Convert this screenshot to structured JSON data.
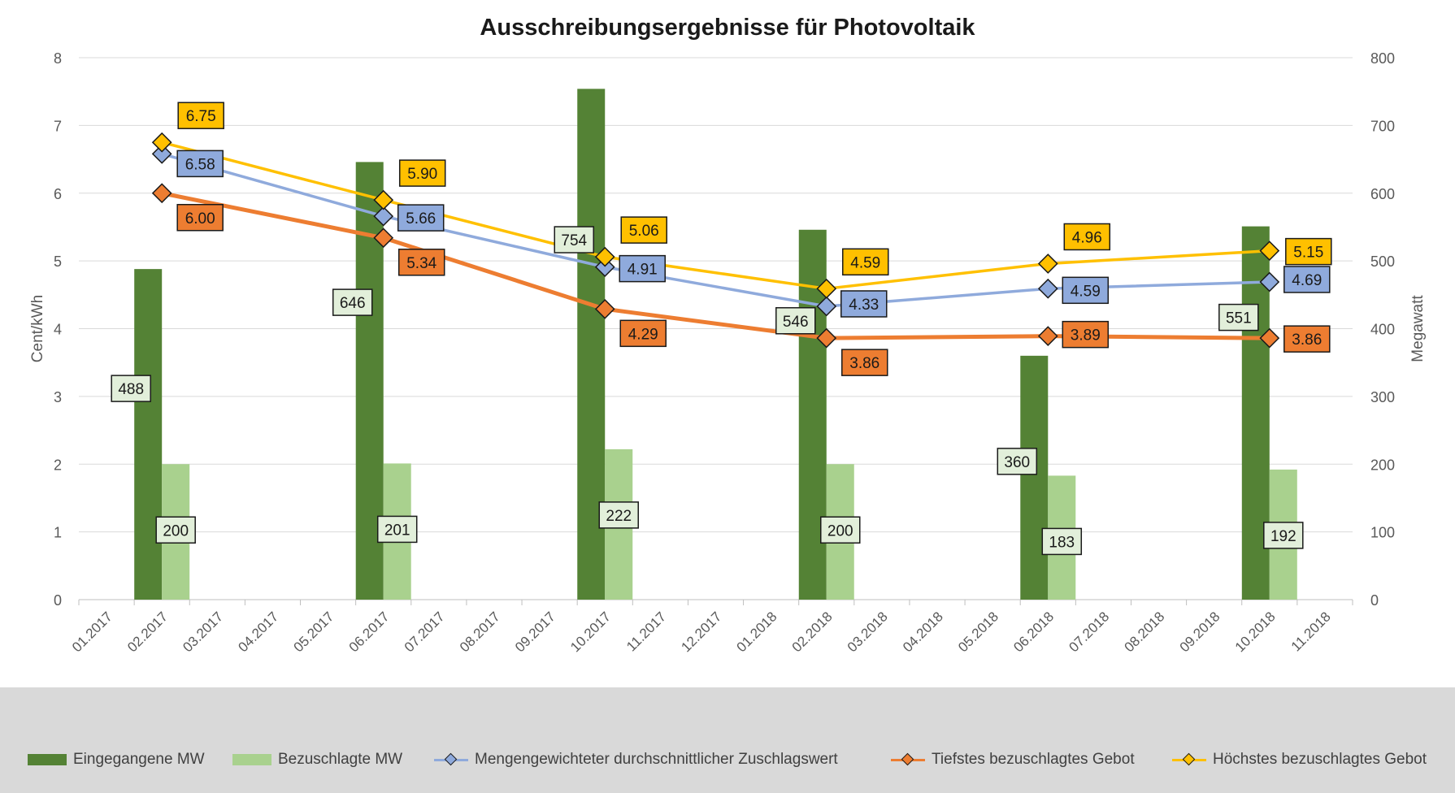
{
  "chart_data": {
    "type": "bar+line",
    "title": "Ausschreibungsergebnisse für Photovoltaik",
    "ylabel_left": "Cent/kWh",
    "ylabel_right": "Megawatt",
    "ylim_left": [
      0,
      8
    ],
    "ylim_right": [
      0,
      800
    ],
    "yticks_left": [
      "0",
      "1",
      "2",
      "3",
      "4",
      "5",
      "6",
      "7",
      "8"
    ],
    "yticks_right": [
      "0",
      "100",
      "200",
      "300",
      "400",
      "500",
      "600",
      "700",
      "800"
    ],
    "categories": [
      "01.2017",
      "02.2017",
      "03.2017",
      "04.2017",
      "05.2017",
      "06.2017",
      "07.2017",
      "08.2017",
      "09.2017",
      "10.2017",
      "11.2017",
      "12.2017",
      "01.2018",
      "02.2018",
      "03.2018",
      "04.2018",
      "05.2018",
      "06.2018",
      "07.2018",
      "08.2018",
      "09.2018",
      "10.2018",
      "11.2018"
    ],
    "grid": true,
    "legend_position": "bottom",
    "bar_series": [
      {
        "name": "Eingegangene MW",
        "color": "#548235",
        "axis": "right",
        "points": [
          {
            "category": "02.2017",
            "value": 488,
            "label": "488"
          },
          {
            "category": "06.2017",
            "value": 646,
            "label": "646"
          },
          {
            "category": "10.2017",
            "value": 754,
            "label": "754"
          },
          {
            "category": "02.2018",
            "value": 546,
            "label": "546"
          },
          {
            "category": "06.2018",
            "value": 360,
            "label": "360"
          },
          {
            "category": "10.2018",
            "value": 551,
            "label": "551"
          }
        ]
      },
      {
        "name": "Bezuschlagte MW",
        "color": "#a9d18e",
        "axis": "right",
        "points": [
          {
            "category": "02.2017",
            "value": 200,
            "label": "200"
          },
          {
            "category": "06.2017",
            "value": 201,
            "label": "201"
          },
          {
            "category": "10.2017",
            "value": 222,
            "label": "222"
          },
          {
            "category": "02.2018",
            "value": 200,
            "label": "200"
          },
          {
            "category": "06.2018",
            "value": 183,
            "label": "183"
          },
          {
            "category": "10.2018",
            "value": 192,
            "label": "192"
          }
        ]
      }
    ],
    "line_series": [
      {
        "name": "Mengengewichteter durchschnittlicher Zuschlagswert",
        "color": "#8faadc",
        "label_bg": "#8faadc",
        "axis": "left",
        "points": [
          {
            "category": "02.2017",
            "value": 6.58,
            "label": "6.58"
          },
          {
            "category": "06.2017",
            "value": 5.66,
            "label": "5.66"
          },
          {
            "category": "10.2017",
            "value": 4.91,
            "label": "4.91"
          },
          {
            "category": "02.2018",
            "value": 4.33,
            "label": "4.33"
          },
          {
            "category": "06.2018",
            "value": 4.59,
            "label": "4.59"
          },
          {
            "category": "10.2018",
            "value": 4.69,
            "label": "4.69"
          }
        ]
      },
      {
        "name": "Tiefstes bezuschlagtes Gebot",
        "color": "#ed7d31",
        "label_bg": "#ed7d31",
        "axis": "left",
        "points": [
          {
            "category": "02.2017",
            "value": 6.0,
            "label": "6.00"
          },
          {
            "category": "06.2017",
            "value": 5.34,
            "label": "5.34"
          },
          {
            "category": "10.2017",
            "value": 4.29,
            "label": "4.29"
          },
          {
            "category": "02.2018",
            "value": 3.86,
            "label": "3.86"
          },
          {
            "category": "06.2018",
            "value": 3.89,
            "label": "3.89"
          },
          {
            "category": "10.2018",
            "value": 3.86,
            "label": "3.86"
          }
        ]
      },
      {
        "name": "Höchstes bezuschlagtes Gebot",
        "color": "#ffc000",
        "label_bg": "#ffc000",
        "axis": "left",
        "points": [
          {
            "category": "02.2017",
            "value": 6.75,
            "label": "6.75"
          },
          {
            "category": "06.2017",
            "value": 5.9,
            "label": "5.90"
          },
          {
            "category": "10.2017",
            "value": 5.06,
            "label": "5.06"
          },
          {
            "category": "02.2018",
            "value": 4.59,
            "label": "4.59"
          },
          {
            "category": "06.2018",
            "value": 4.96,
            "label": "4.96"
          },
          {
            "category": "10.2018",
            "value": 5.15,
            "label": "5.15"
          }
        ]
      }
    ]
  },
  "legend": [
    {
      "label": "Eingegangene MW",
      "kind": "bar",
      "color": "#548235"
    },
    {
      "label": "Bezuschlagte MW",
      "kind": "bar",
      "color": "#a9d18e"
    },
    {
      "label": "Mengengewichteter durchschnittlicher Zuschlagswert",
      "kind": "line",
      "color": "#8faadc"
    },
    {
      "label": "Tiefstes bezuschlagtes Gebot",
      "kind": "line",
      "color": "#ed7d31"
    },
    {
      "label": "Höchstes bezuschlagtes Gebot",
      "kind": "line",
      "color": "#ffc000"
    }
  ]
}
